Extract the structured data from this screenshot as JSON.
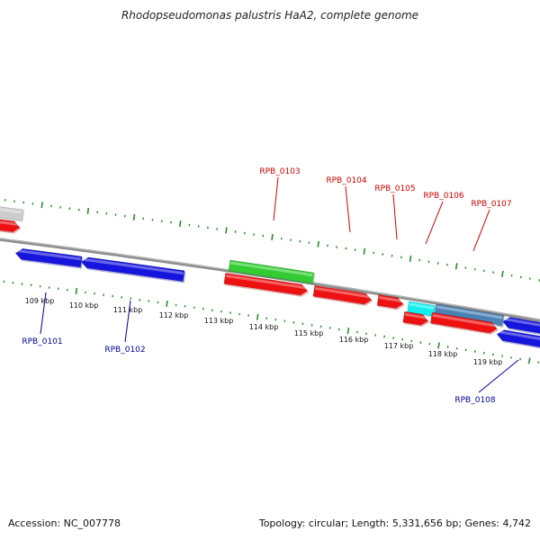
{
  "title": "Rhodopseudomonas palustris HaA2, complete genome",
  "footer": {
    "accession": "Accession: NC_007778",
    "summary": "Topology: circular; Length: 5,331,656 bp; Genes: 4,742"
  },
  "colors": {
    "backbone": "#8c8c8c",
    "ticks": "#2e8b2e",
    "forward_label": "#cc0000",
    "reverse_label": "#00009c",
    "red": "#ee1111",
    "blue": "#1515dd",
    "green": "#33cc33",
    "cyan": "#11eeee",
    "steelblue": "#4a82b4",
    "grey": "#cccccc"
  },
  "ruler": {
    "labels": [
      "109 kbp",
      "110 kbp",
      "111 kbp",
      "112 kbp",
      "113 kbp",
      "114 kbp",
      "115 kbp",
      "116 kbp",
      "117 kbp",
      "118 kbp",
      "119 kbp"
    ]
  },
  "gene_labels": {
    "forward": [
      "RPB_0103",
      "RPB_0104",
      "RPB_0105",
      "RPB_0106",
      "RPB_0107"
    ],
    "reverse": [
      "RPB_0101",
      "RPB_0102",
      "RPB_0108"
    ]
  },
  "features": [
    {
      "lane": "f2",
      "color": "grey",
      "strand": "none"
    },
    {
      "lane": "f1",
      "color": "red",
      "strand": "forward"
    },
    {
      "lane": "f2",
      "color": "green",
      "strand": "none"
    },
    {
      "lane": "f1",
      "color": "red",
      "strand": "forward"
    },
    {
      "lane": "f1",
      "color": "red",
      "strand": "forward"
    },
    {
      "lane": "f1",
      "color": "red",
      "strand": "forward"
    },
    {
      "lane": "f2",
      "color": "cyan",
      "strand": "none"
    },
    {
      "lane": "f1",
      "color": "red",
      "strand": "forward"
    },
    {
      "lane": "f2",
      "color": "steelblue",
      "strand": "none"
    },
    {
      "lane": "f1",
      "color": "red",
      "strand": "forward"
    },
    {
      "lane": "r1",
      "color": "blue",
      "strand": "reverse"
    },
    {
      "lane": "r1",
      "color": "blue",
      "strand": "reverse"
    },
    {
      "lane": "r1",
      "color": "blue",
      "strand": "reverse"
    },
    {
      "lane": "r2",
      "color": "blue",
      "strand": "reverse"
    }
  ]
}
